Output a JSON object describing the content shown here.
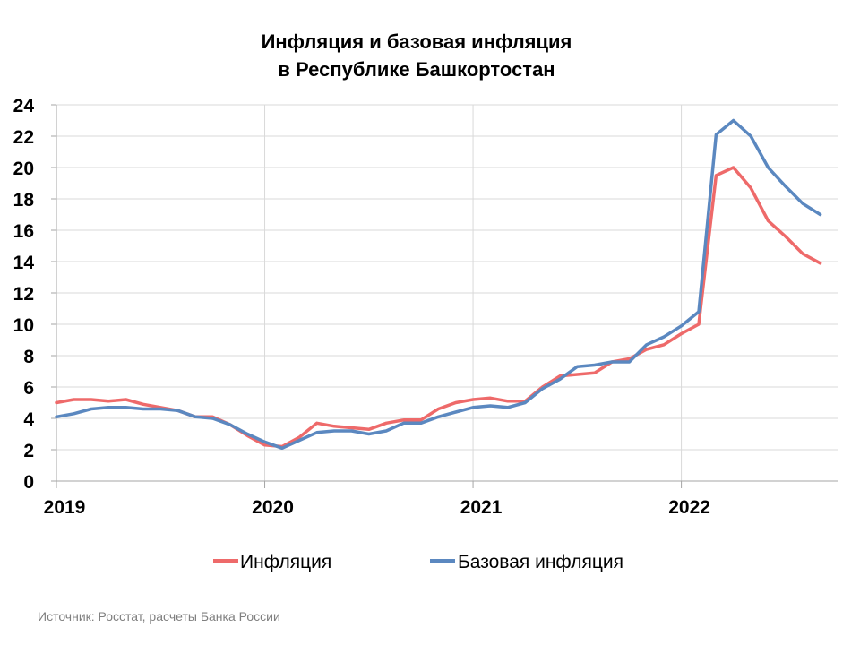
{
  "chart_data": {
    "type": "line",
    "title": [
      "Инфляция и базовая инфляция",
      "в  Республике Башкортостан"
    ],
    "xlabel": "",
    "ylabel": "",
    "x_tick_labels": [
      "2019",
      "2020",
      "2021",
      "2022"
    ],
    "x_range": [
      "2019-01",
      "2022-09"
    ],
    "y_ticks": [
      0,
      2,
      4,
      6,
      8,
      10,
      12,
      14,
      16,
      18,
      20,
      22,
      24
    ],
    "ylim": [
      0,
      24
    ],
    "grid": "horizontal-and-year-vertical",
    "legend_position": "bottom",
    "source": "Источник: Росстат, расчеты Банка России",
    "x": [
      "2019-01",
      "2019-02",
      "2019-03",
      "2019-04",
      "2019-05",
      "2019-06",
      "2019-07",
      "2019-08",
      "2019-09",
      "2019-10",
      "2019-11",
      "2019-12",
      "2020-01",
      "2020-02",
      "2020-03",
      "2020-04",
      "2020-05",
      "2020-06",
      "2020-07",
      "2020-08",
      "2020-09",
      "2020-10",
      "2020-11",
      "2020-12",
      "2021-01",
      "2021-02",
      "2021-03",
      "2021-04",
      "2021-05",
      "2021-06",
      "2021-07",
      "2021-08",
      "2021-09",
      "2021-10",
      "2021-11",
      "2021-12",
      "2022-01",
      "2022-02",
      "2022-03",
      "2022-04",
      "2022-05",
      "2022-06",
      "2022-07",
      "2022-08",
      "2022-09"
    ],
    "series": [
      {
        "name": "Инфляция",
        "color": "#ee6a6a",
        "values": [
          5.0,
          5.2,
          5.2,
          5.1,
          5.2,
          4.9,
          4.7,
          4.5,
          4.1,
          4.1,
          3.6,
          2.9,
          2.3,
          2.2,
          2.8,
          3.7,
          3.5,
          3.4,
          3.3,
          3.7,
          3.9,
          3.9,
          4.6,
          5.0,
          5.2,
          5.3,
          5.1,
          5.1,
          6.0,
          6.7,
          6.8,
          6.9,
          7.6,
          7.8,
          8.4,
          8.7,
          9.4,
          10.0,
          19.5,
          20.0,
          18.7,
          16.6,
          15.6,
          14.5,
          13.9
        ]
      },
      {
        "name": "Базовая инфляция",
        "color": "#5b88c0",
        "values": [
          4.1,
          4.3,
          4.6,
          4.7,
          4.7,
          4.6,
          4.6,
          4.5,
          4.1,
          4.0,
          3.6,
          3.0,
          2.5,
          2.1,
          2.6,
          3.1,
          3.2,
          3.2,
          3.0,
          3.2,
          3.7,
          3.7,
          4.1,
          4.4,
          4.7,
          4.8,
          4.7,
          5.0,
          5.9,
          6.5,
          7.3,
          7.4,
          7.6,
          7.6,
          8.7,
          9.2,
          9.9,
          10.8,
          22.1,
          23.0,
          22.0,
          20.0,
          18.8,
          17.7,
          17.0
        ]
      }
    ]
  }
}
